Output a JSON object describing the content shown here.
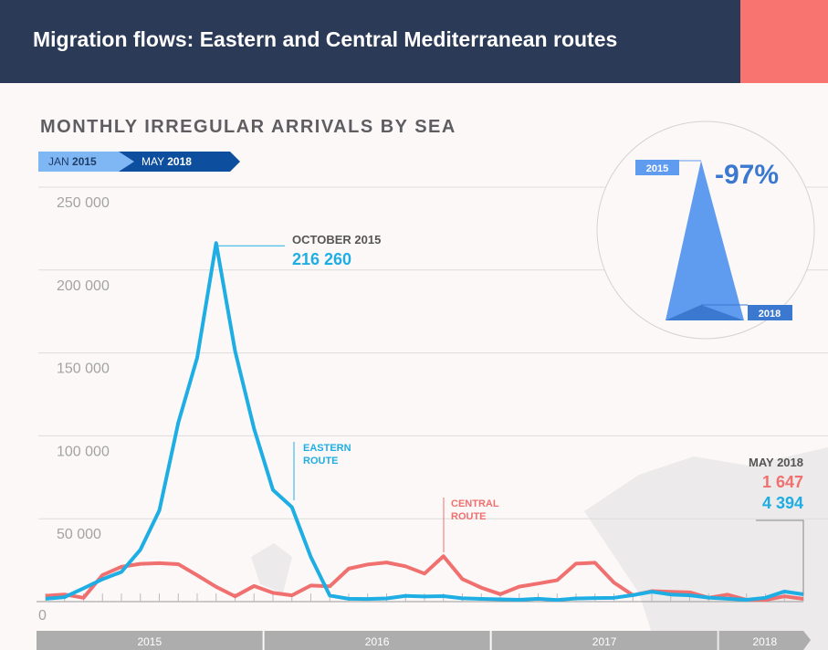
{
  "header": {
    "title": "Migration flows: Eastern and Central Mediterranean routes"
  },
  "chart_data": {
    "type": "line",
    "title": "MONTHLY IRREGULAR ARRIVALS BY SEA",
    "range": {
      "from_month": "JAN",
      "from_year": "2015",
      "to_month": "MAY",
      "to_year": "2018"
    },
    "ylim": [
      0,
      250000
    ],
    "yticks": [
      {
        "v": 0,
        "label": "0"
      },
      {
        "v": 50000,
        "label": "50 000"
      },
      {
        "v": 100000,
        "label": "100 000"
      },
      {
        "v": 150000,
        "label": "150 000"
      },
      {
        "v": 200000,
        "label": "200 000"
      },
      {
        "v": 250000,
        "label": "250 000"
      }
    ],
    "years": [
      {
        "label": "2015",
        "months": 12
      },
      {
        "label": "2016",
        "months": 12
      },
      {
        "label": "2017",
        "months": 12
      },
      {
        "label": "2018",
        "months": 5
      }
    ],
    "series": [
      {
        "name": "Eastern route",
        "color": "#1eaee3",
        "values": [
          1700,
          2700,
          8000,
          13500,
          17900,
          31300,
          54900,
          107800,
          147100,
          216260,
          151200,
          104400,
          67400,
          57000,
          26900,
          3650,
          1720,
          1550,
          1920,
          3450,
          3080,
          3290,
          2000,
          1660,
          1390,
          1090,
          1690,
          1000,
          1900,
          2100,
          2300,
          3900,
          6000,
          4300,
          3800,
          2400,
          1700,
          1100,
          2300,
          6100,
          4394
        ]
      },
      {
        "name": "Central route",
        "color": "#f0706f",
        "values": [
          3500,
          4300,
          2300,
          16000,
          21000,
          22800,
          23200,
          22600,
          15900,
          8900,
          3200,
          9400,
          5300,
          3800,
          9700,
          9200,
          19900,
          22400,
          23600,
          21300,
          16900,
          27400,
          13600,
          8400,
          4500,
          9000,
          10900,
          12900,
          22900,
          23500,
          11500,
          3900,
          6300,
          5900,
          5600,
          2300,
          4200,
          1100,
          1000,
          3200,
          1647
        ]
      }
    ],
    "annotations": {
      "peak": {
        "label": "OCTOBER 2015",
        "value": "216 260"
      },
      "eastern_label": [
        "EASTERN",
        "ROUTE"
      ],
      "central_label": [
        "CENTRAL",
        "ROUTE"
      ],
      "latest": {
        "label": "MAY 2018",
        "central": "1 647",
        "eastern": "4 394"
      }
    },
    "inset": {
      "change": "-97%",
      "from": "2015",
      "to": "2018"
    }
  }
}
